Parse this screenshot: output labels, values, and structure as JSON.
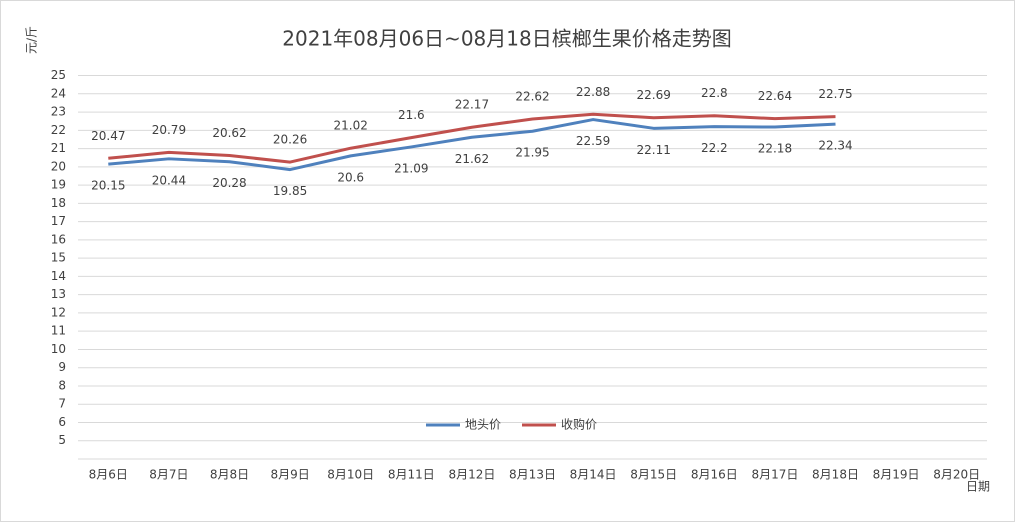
{
  "chart_data": {
    "type": "line",
    "title": "2021年08月06日~08月18日槟榔生果价格走势图",
    "y_label": "元/斤",
    "x_label": "日期",
    "categories": [
      "8月6日",
      "8月7日",
      "8月8日",
      "8月9日",
      "8月10日",
      "8月11日",
      "8月12日",
      "8月13日",
      "8月14日",
      "8月15日",
      "8月16日",
      "8月17日",
      "8月18日",
      "8月19日",
      "8月20日"
    ],
    "series": [
      {
        "name": "地头价",
        "color": "#4f81bd",
        "values": [
          20.15,
          20.44,
          20.28,
          19.85,
          20.6,
          21.09,
          21.62,
          21.95,
          22.59,
          22.11,
          22.2,
          22.18,
          22.34,
          null,
          null
        ]
      },
      {
        "name": "收购价",
        "color": "#c0504d",
        "values": [
          20.47,
          20.79,
          20.62,
          20.26,
          21.02,
          21.6,
          22.17,
          22.62,
          22.88,
          22.69,
          22.8,
          22.64,
          22.75,
          null,
          null
        ]
      }
    ],
    "ylim": [
      4,
      25
    ],
    "yticks": [
      5,
      6,
      7,
      8,
      9,
      10,
      11,
      12,
      13,
      14,
      15,
      16,
      17,
      18,
      19,
      20,
      21,
      22,
      23,
      24,
      25
    ],
    "grid": true,
    "legend": "bottom"
  }
}
